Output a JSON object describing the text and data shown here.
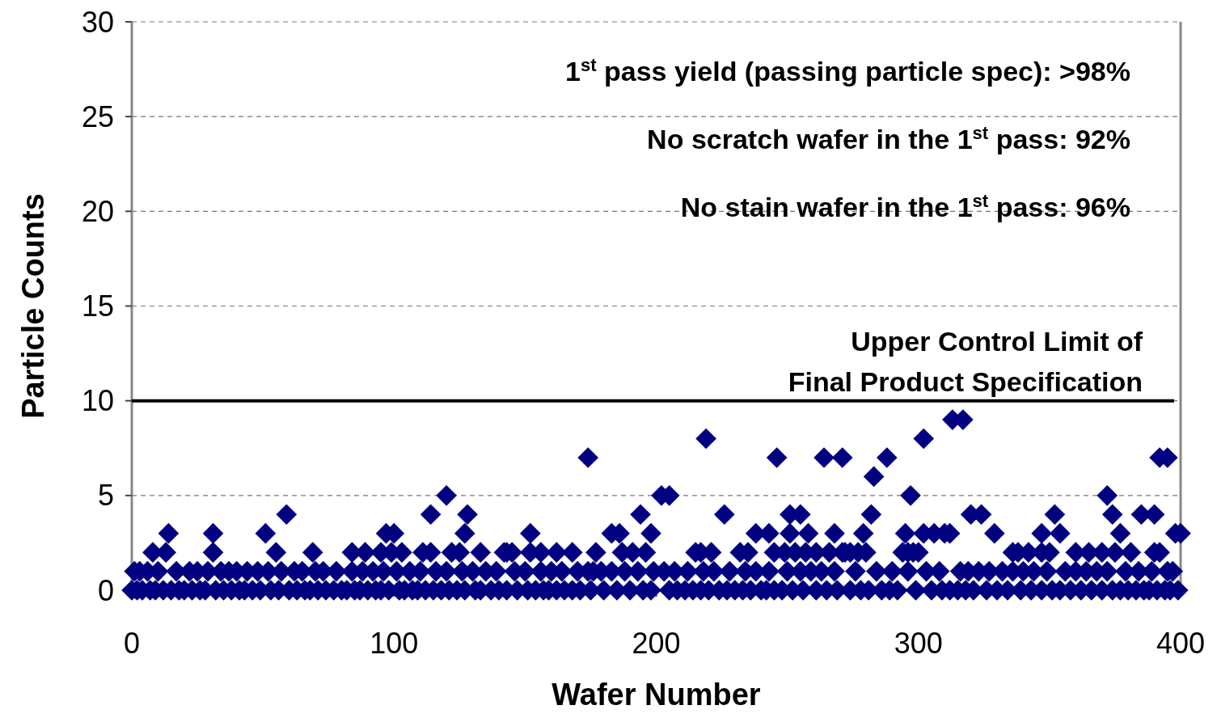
{
  "chart_data": {
    "type": "scatter",
    "xlabel": "Wafer Number",
    "ylabel": "Particle Counts",
    "xlim": [
      0,
      400
    ],
    "xticks": [
      0,
      100,
      200,
      300,
      400
    ],
    "ylim": [
      0,
      30
    ],
    "yticks": [
      0,
      5,
      10,
      15,
      20,
      25,
      30
    ],
    "grid": "y",
    "marker": "diamond",
    "annotations": [
      "1$^{st}$ pass yield (passing particle spec): >98%",
      "No scratch wafer in the 1$^{st}$ pass: 92%",
      "No stain wafer in the 1$^{st}$ pass: 96%"
    ],
    "ref_lines": [
      {
        "axis": "y",
        "value": 10,
        "label": "Upper Control Limit of Final Product Specification",
        "color": "#000000"
      }
    ],
    "series": [
      {
        "color": "#000080",
        "x": [
          14,
          31,
          51,
          59,
          97,
          100,
          114,
          120,
          128,
          127,
          152,
          174,
          183,
          186,
          194,
          198,
          202,
          205,
          219,
          226,
          238,
          243,
          246,
          251,
          251,
          255,
          258,
          264,
          271,
          268,
          279,
          282,
          283,
          288,
          295,
          297,
          302,
          302,
          306,
          310,
          312,
          313,
          317,
          320,
          324,
          329,
          347,
          352,
          354,
          372,
          374,
          377,
          385,
          390,
          392,
          395,
          398,
          400,
          8,
          13,
          31,
          55,
          69,
          84,
          89,
          95,
          99,
          103,
          111,
          114,
          122,
          125,
          133,
          142,
          143,
          145,
          152,
          156,
          162,
          168,
          177,
          187,
          191,
          196,
          215,
          217,
          221,
          232,
          235,
          245,
          249,
          253,
          257,
          261,
          266,
          271,
          272,
          274,
          277,
          280,
          294,
          296,
          298,
          300,
          336,
          338,
          342,
          347,
          350,
          360,
          365,
          370,
          375,
          381,
          390,
          392,
          1,
          3,
          6,
          10,
          17,
          22,
          25,
          29,
          34,
          37,
          40,
          44,
          48,
          52,
          57,
          62,
          65,
          70,
          73,
          78,
          84,
          88,
          92,
          96,
          101,
          106,
          110,
          116,
          120,
          126,
          130,
          135,
          139,
          146,
          150,
          156,
          160,
          164,
          170,
          174,
          176,
          179,
          183,
          188,
          193,
          199,
          203,
          207,
          212,
          218,
          222,
          228,
          234,
          238,
          243,
          250,
          255,
          259,
          263,
          268,
          276,
          284,
          290,
          296,
          303,
          308,
          316,
          319,
          323,
          327,
          332,
          336,
          340,
          344,
          349,
          356,
          360,
          364,
          368,
          372,
          379,
          384,
          389,
          395,
          397,
          0,
          2,
          4,
          7,
          9,
          12,
          15,
          18,
          20,
          23,
          26,
          28,
          32,
          35,
          38,
          41,
          43,
          46,
          49,
          53,
          56,
          60,
          63,
          66,
          68,
          71,
          74,
          77,
          80,
          82,
          85,
          87,
          90,
          93,
          95,
          98,
          102,
          104,
          107,
          109,
          112,
          115,
          118,
          121,
          124,
          127,
          131,
          133,
          137,
          140,
          143,
          147,
          151,
          154,
          157,
          159,
          162,
          165,
          168,
          171,
          175,
          180,
          185,
          190,
          195,
          198,
          205,
          208,
          211,
          214,
          217,
          220,
          224,
          227,
          230,
          233,
          236,
          240,
          242,
          245,
          248,
          252,
          256,
          261,
          265,
          269,
          274,
          278,
          281,
          286,
          289,
          292,
          299,
          305,
          309,
          312,
          315,
          318,
          321,
          326,
          330,
          334,
          339,
          343,
          347,
          351,
          354,
          358,
          362,
          366,
          370,
          374,
          377,
          380,
          383,
          386,
          388,
          391,
          394,
          396,
          399
        ],
        "values": [
          3,
          3,
          3,
          4,
          3,
          3,
          4,
          5,
          4,
          3,
          3,
          7,
          3,
          3,
          4,
          3,
          5,
          5,
          8,
          4,
          3,
          3,
          7,
          3,
          4,
          4,
          3,
          7,
          7,
          3,
          3,
          4,
          6,
          7,
          3,
          5,
          8,
          3,
          3,
          3,
          3,
          9,
          9,
          4,
          4,
          3,
          3,
          4,
          3,
          5,
          4,
          3,
          4,
          4,
          7,
          7,
          3,
          3,
          2,
          2,
          2,
          2,
          2,
          2,
          2,
          2,
          2,
          2,
          2,
          2,
          2,
          2,
          2,
          2,
          2,
          2,
          2,
          2,
          2,
          2,
          2,
          2,
          2,
          2,
          2,
          2,
          2,
          2,
          2,
          2,
          2,
          2,
          2,
          2,
          2,
          2,
          2,
          2,
          2,
          2,
          2,
          2,
          2,
          2,
          2,
          2,
          2,
          2,
          2,
          2,
          2,
          2,
          2,
          2,
          2,
          2,
          1,
          1,
          1,
          1,
          1,
          1,
          1,
          1,
          1,
          1,
          1,
          1,
          1,
          1,
          1,
          1,
          1,
          1,
          1,
          1,
          1,
          1,
          1,
          1,
          1,
          1,
          1,
          1,
          1,
          1,
          1,
          1,
          1,
          1,
          1,
          1,
          1,
          1,
          1,
          1,
          1,
          1,
          1,
          1,
          1,
          1,
          1,
          1,
          1,
          1,
          1,
          1,
          1,
          1,
          1,
          1,
          1,
          1,
          1,
          1,
          1,
          1,
          1,
          1,
          1,
          1,
          1,
          1,
          1,
          1,
          1,
          1,
          1,
          1,
          1,
          1,
          1,
          1,
          1,
          1,
          1,
          1,
          1,
          1,
          1,
          0,
          0,
          0,
          0,
          0,
          0,
          0,
          0,
          0,
          0,
          0,
          0,
          0,
          0,
          0,
          0,
          0,
          0,
          0,
          0,
          0,
          0,
          0,
          0,
          0,
          0,
          0,
          0,
          0,
          0,
          0,
          0,
          0,
          0,
          0,
          0,
          0,
          0,
          0,
          0,
          0,
          0,
          0,
          0,
          0,
          0,
          0,
          0,
          0,
          0,
          0,
          0,
          0,
          0,
          0,
          0,
          0,
          0,
          0,
          0,
          0,
          0,
          0,
          0,
          0,
          0,
          0,
          0,
          0,
          0,
          0,
          0,
          0,
          0,
          0,
          0,
          0,
          0,
          0,
          0,
          0,
          0,
          0,
          0,
          0,
          0,
          0,
          0,
          0,
          0,
          0,
          0,
          0,
          0,
          0,
          0,
          0,
          0,
          0,
          0,
          0,
          0,
          0,
          0,
          0,
          0,
          0,
          0,
          0,
          0,
          0,
          0,
          0,
          0,
          0,
          0,
          0,
          0,
          0,
          0,
          0
        ]
      }
    ]
  }
}
